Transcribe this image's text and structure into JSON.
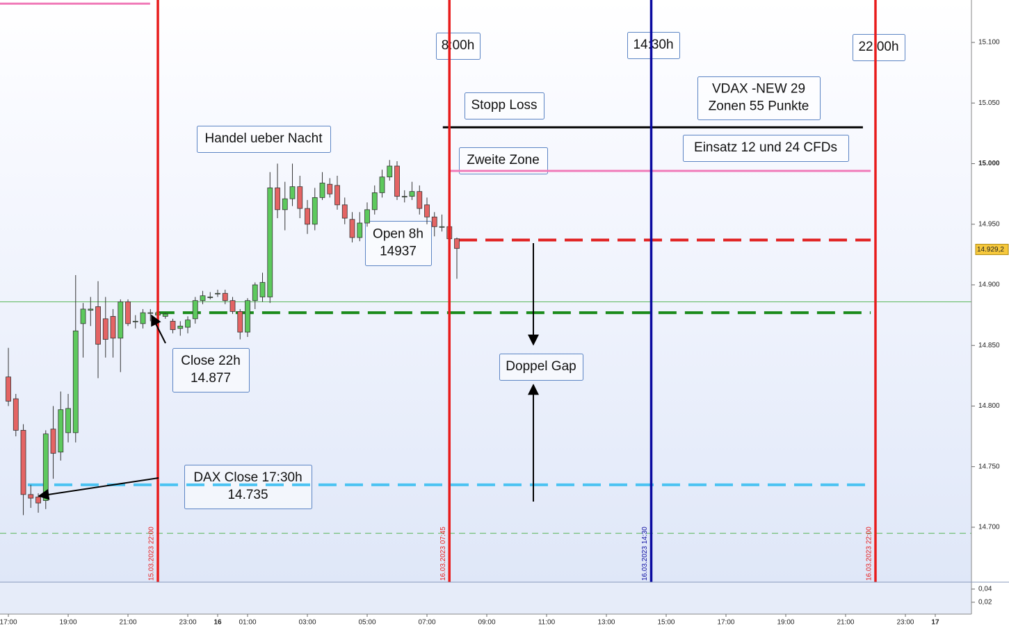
{
  "chart_data": [
    {
      "type": "candlestick",
      "x": [
        17,
        17.25,
        17.5,
        17.75,
        18,
        18.25,
        18.5,
        18.75,
        19,
        19.25,
        19.5,
        19.75,
        20,
        20.25,
        20.5,
        20.75,
        21,
        21.25,
        21.5,
        21.75,
        22,
        22.25,
        22.5,
        22.75,
        23,
        23.25,
        23.5,
        23.75,
        24,
        24.25,
        24.5,
        24.75,
        25,
        25.25,
        25.5,
        25.75,
        26,
        26.25,
        26.5,
        26.75,
        27,
        27.25,
        27.5,
        27.75,
        28,
        28.25,
        28.5,
        28.75,
        29,
        29.25,
        29.5,
        29.75,
        30,
        30.25,
        30.5,
        30.75,
        31,
        31.25,
        31.5,
        31.75,
        32
      ],
      "open": [
        14824,
        14806,
        14780,
        14727,
        14725,
        14722,
        14781,
        14762,
        14778,
        14778,
        14868,
        14879,
        14882,
        14872,
        14874,
        14856,
        14886,
        14870,
        14868,
        14877,
        14875,
        14874,
        14870,
        14864,
        14865,
        14872,
        14887,
        14890,
        14893,
        14893,
        14887,
        14878,
        14861,
        14887,
        14890,
        14890,
        14980,
        14962,
        14971,
        14981,
        14963,
        14950,
        14972,
        14983,
        14982,
        14966,
        14954,
        14939,
        14951,
        14962,
        14976,
        14989,
        14998,
        14973,
        14973,
        14977,
        14966,
        14956,
        14948,
        14948,
        14938
      ],
      "high": [
        14848,
        14810,
        14785,
        14735,
        14728,
        14780,
        14800,
        14812,
        14810,
        14908,
        14885,
        14890,
        14903,
        14890,
        14880,
        14888,
        14888,
        14875,
        14880,
        14880,
        14878,
        14877,
        14872,
        14870,
        14874,
        14890,
        14895,
        14894,
        14896,
        14896,
        14890,
        14880,
        14889,
        14902,
        14910,
        14993,
        15000,
        14985,
        15000,
        14990,
        14970,
        14980,
        14993,
        14988,
        14990,
        14972,
        14960,
        14960,
        14968,
        14982,
        14995,
        15003,
        15002,
        14978,
        14985,
        14982,
        14972,
        14960,
        14958,
        14950,
        14939
      ],
      "low": [
        14800,
        14775,
        14710,
        14716,
        14712,
        14715,
        14740,
        14755,
        14770,
        14770,
        14840,
        14866,
        14823,
        14840,
        14840,
        14828,
        14866,
        14864,
        14864,
        14870,
        14872,
        14872,
        14860,
        14858,
        14860,
        14868,
        14884,
        14888,
        14890,
        14884,
        14876,
        14855,
        14857,
        14880,
        14886,
        14885,
        14955,
        14945,
        14965,
        14955,
        14942,
        14945,
        14970,
        14972,
        14962,
        14950,
        14935,
        14936,
        14948,
        14958,
        14972,
        14986,
        14970,
        14968,
        14970,
        14958,
        14950,
        14940,
        14944,
        14933,
        14905
      ],
      "close": [
        14804,
        14780,
        14727,
        14724,
        14720,
        14777,
        14761,
        14797,
        14798,
        14862,
        14880,
        14880,
        14851,
        14855,
        14856,
        14886,
        14868,
        14870,
        14877,
        14877,
        14877,
        14876,
        14863,
        14866,
        14871,
        14887,
        14891,
        14890,
        14893,
        14887,
        14878,
        14861,
        14887,
        14900,
        14902,
        14980,
        14962,
        14971,
        14981,
        14963,
        14950,
        14972,
        14984,
        14975,
        14966,
        14955,
        14939,
        14951,
        14962,
        14976,
        14989,
        14998,
        14973,
        14973,
        14977,
        14963,
        14956,
        14948,
        14948,
        14938,
        14930
      ],
      "up_color": "#5dc95d",
      "down_color": "#e46464",
      "xlim": [
        16.72,
        49.21
      ],
      "ylim": [
        14654.7,
        15135
      ],
      "xticks": [
        {
          "value": 17,
          "label": "17:00"
        },
        {
          "value": 19,
          "label": "19:00"
        },
        {
          "value": 21,
          "label": "21:00"
        },
        {
          "value": 23,
          "label": "23:00"
        },
        {
          "value": 24,
          "label": "16"
        },
        {
          "value": 25,
          "label": "01:00"
        },
        {
          "value": 27,
          "label": "03:00"
        },
        {
          "value": 29,
          "label": "05:00"
        },
        {
          "value": 31,
          "label": "07:00"
        },
        {
          "value": 33,
          "label": "09:00"
        },
        {
          "value": 35,
          "label": "11:00"
        },
        {
          "value": 37,
          "label": "13:00"
        },
        {
          "value": 39,
          "label": "15:00"
        },
        {
          "value": 41,
          "label": "17:00"
        },
        {
          "value": 43,
          "label": "19:00"
        },
        {
          "value": 45,
          "label": "21:00"
        },
        {
          "value": 47,
          "label": "23:00"
        },
        {
          "value": 48,
          "label": "17"
        }
      ],
      "yticks": [
        {
          "value": 15100,
          "label": "15.100"
        },
        {
          "value": 15050,
          "label": "15.050"
        },
        {
          "value": 15000,
          "label": "15.000"
        },
        {
          "value": 14950,
          "label": "14.950"
        },
        {
          "value": 14900,
          "label": "14.900"
        },
        {
          "value": 14850,
          "label": "14.850"
        },
        {
          "value": 14800,
          "label": "14.800"
        },
        {
          "value": 14750,
          "label": "14.750"
        },
        {
          "value": 14700,
          "label": "14.700"
        }
      ],
      "last_price": {
        "value": 14929.2,
        "label": "14.929,2"
      },
      "levels": [
        {
          "value": 15132,
          "color": "#f07ab8",
          "style": "solid",
          "from": 16.72,
          "to": 21.74
        },
        {
          "value": 15030,
          "color": "#000000",
          "style": "solid",
          "from": 31.53,
          "to": 45.58
        },
        {
          "value": 14994,
          "color": "#f07ab8",
          "style": "solid",
          "from": 31.79,
          "to": 45.84
        },
        {
          "value": 14937,
          "color": "#e02020",
          "style": "dashed",
          "from": 32.07,
          "to": 45.84
        },
        {
          "value": 14877,
          "color": "#1a8a1a",
          "style": "dashed",
          "from": 21.95,
          "to": 45.84
        },
        {
          "value": 14735,
          "color": "#4cc3f2",
          "style": "dashed",
          "from": 17.65,
          "to": 45.84
        },
        {
          "value": 14886,
          "color": "#5cb85c",
          "style": "thin",
          "from": 16.72,
          "to": 49.21
        },
        {
          "value": 14695,
          "color": "#5cb85c",
          "style": "thin-dashed",
          "from": 16.72,
          "to": 49.21
        }
      ],
      "vlines": [
        {
          "value": 22,
          "color": "#e81c1c",
          "label": "15.03.2023 22:00"
        },
        {
          "value": 31.75,
          "color": "#e81c1c",
          "label": "16.03.2023 07:45"
        },
        {
          "value": 38.5,
          "color": "#0a0aa0",
          "label": "16.03.2023 14:30"
        },
        {
          "value": 46,
          "color": "#e81c1c",
          "label": "16.03.2023 22:00"
        }
      ],
      "annotations": [
        {
          "lines": [
            "8:00h"
          ]
        },
        {
          "lines": [
            "14:30h"
          ]
        },
        {
          "lines": [
            "22:00h"
          ]
        },
        {
          "lines": [
            "Stopp Loss"
          ]
        },
        {
          "lines": [
            "VDAX -NEW 29",
            "Zonen 55 Punkte"
          ]
        },
        {
          "lines": [
            "Handel ueber Nacht"
          ]
        },
        {
          "lines": [
            "Einsatz 12 und 24 CFDs"
          ]
        },
        {
          "lines": [
            "Zweite Zone"
          ],
          "color": "#e00000"
        },
        {
          "lines": [
            "Open 8h",
            "14937"
          ]
        },
        {
          "lines": [
            "Close 22h",
            "14.877"
          ]
        },
        {
          "lines": [
            "Doppel Gap"
          ]
        },
        {
          "lines": [
            "DAX Close 17:30h",
            "14.735"
          ]
        }
      ]
    },
    {
      "type": "panel",
      "ylim": [
        0.002,
        0.0505
      ],
      "yticks": [
        {
          "value": 0.04,
          "label": "0,04"
        },
        {
          "value": 0.02,
          "label": "0,02"
        }
      ]
    }
  ]
}
